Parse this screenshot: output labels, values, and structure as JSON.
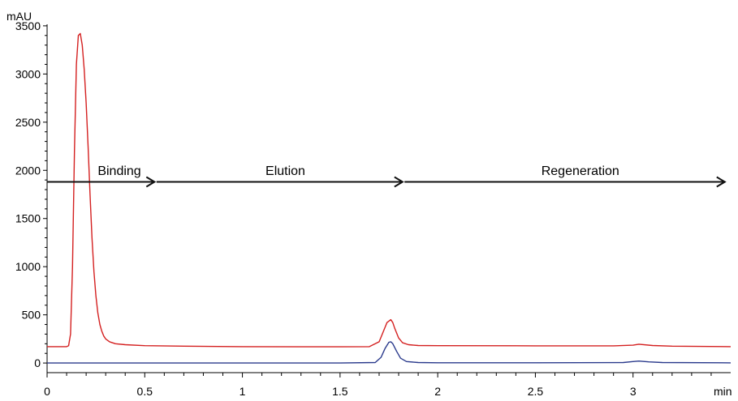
{
  "chart_data": {
    "type": "line",
    "ylabel": "mAU",
    "xlabel": "min",
    "xlim": [
      0,
      3.5
    ],
    "ylim": [
      -100,
      3600
    ],
    "x_ticks": [
      {
        "value": 0,
        "label": "0"
      },
      {
        "value": 0.5,
        "label": "0.5"
      },
      {
        "value": 1,
        "label": "1"
      },
      {
        "value": 1.5,
        "label": "1.5"
      },
      {
        "value": 2,
        "label": "2"
      },
      {
        "value": 2.5,
        "label": "2.5"
      },
      {
        "value": 3,
        "label": "3"
      }
    ],
    "y_ticks": [
      {
        "value": 0,
        "label": "0"
      },
      {
        "value": 500,
        "label": "500"
      },
      {
        "value": 1000,
        "label": "1000"
      },
      {
        "value": 1500,
        "label": "1500"
      },
      {
        "value": 2000,
        "label": "2000"
      },
      {
        "value": 2500,
        "label": "2500"
      },
      {
        "value": 3000,
        "label": "3000"
      },
      {
        "value": 3500,
        "label": "3500"
      }
    ],
    "grid": false,
    "series": [
      {
        "color": "#d42020",
        "x": [
          0,
          0.1,
          0.11,
          0.12,
          0.13,
          0.14,
          0.15,
          0.16,
          0.17,
          0.18,
          0.19,
          0.2,
          0.21,
          0.22,
          0.23,
          0.24,
          0.25,
          0.26,
          0.27,
          0.28,
          0.29,
          0.3,
          0.32,
          0.35,
          0.4,
          0.5,
          0.7,
          1.0,
          1.3,
          1.5,
          1.65,
          1.7,
          1.72,
          1.74,
          1.76,
          1.77,
          1.78,
          1.8,
          1.82,
          1.85,
          1.9,
          2.0,
          2.5,
          2.9,
          3.0,
          3.03,
          3.1,
          3.2,
          3.5
        ],
        "y": [
          170,
          170,
          180,
          300,
          1000,
          2200,
          3100,
          3400,
          3420,
          3300,
          3050,
          2700,
          2250,
          1750,
          1300,
          950,
          700,
          520,
          400,
          330,
          280,
          250,
          220,
          200,
          190,
          180,
          175,
          170,
          168,
          168,
          170,
          220,
          320,
          420,
          450,
          420,
          360,
          260,
          210,
          190,
          182,
          180,
          178,
          178,
          185,
          195,
          182,
          175,
          170
        ]
      },
      {
        "color": "#2a3a8c",
        "x": [
          0,
          0.5,
          1.0,
          1.5,
          1.68,
          1.71,
          1.73,
          1.75,
          1.76,
          1.77,
          1.79,
          1.81,
          1.84,
          1.9,
          2.0,
          2.5,
          2.95,
          3.0,
          3.03,
          3.08,
          3.15,
          3.5
        ],
        "y": [
          0,
          0,
          0,
          0,
          5,
          60,
          150,
          215,
          220,
          200,
          120,
          50,
          15,
          5,
          3,
          3,
          5,
          15,
          20,
          12,
          5,
          2
        ]
      }
    ],
    "annotations": [
      {
        "label": "Binding",
        "x": 0.37
      },
      {
        "label": "Elution",
        "x": 1.22
      },
      {
        "label": "Regeneration",
        "x": 2.73
      }
    ],
    "arrows": [
      {
        "from": 0.0,
        "to": 0.55,
        "y": 1880
      },
      {
        "from": 0.56,
        "to": 1.82,
        "y": 1880
      },
      {
        "from": 1.83,
        "to": 3.47,
        "y": 1880
      }
    ]
  }
}
